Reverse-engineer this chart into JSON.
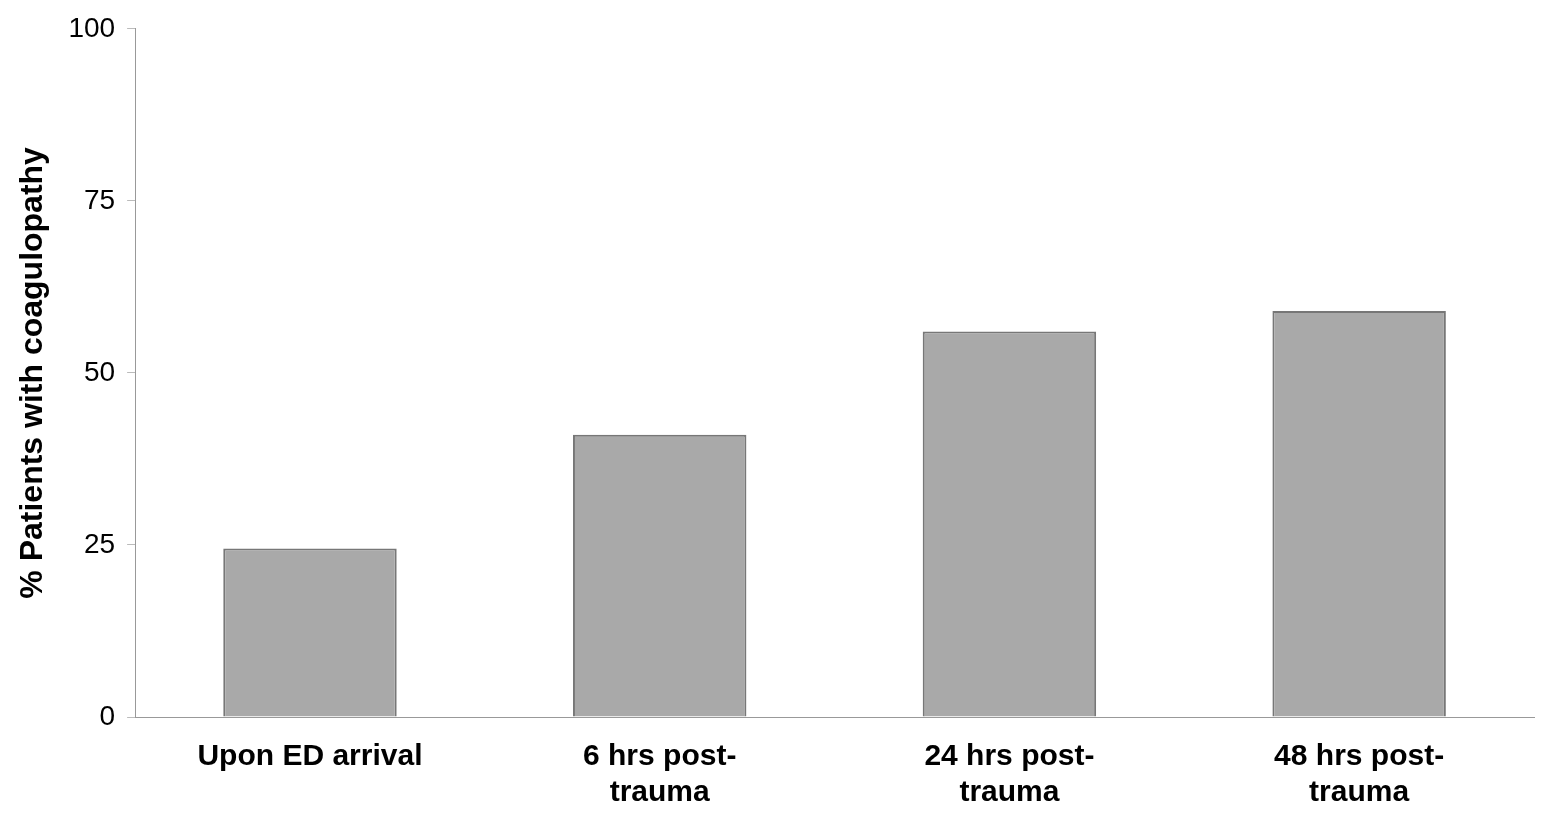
{
  "chart_data": {
    "type": "bar",
    "ylabel": "% Patients with coagulopathy",
    "categories": [
      "Upon ED arrival",
      "6 hrs post-trauma",
      "24 hrs post-trauma",
      "48 hrs post-trauma"
    ],
    "values": [
      24.5,
      41,
      56,
      59
    ],
    "color": "#a9a9a9",
    "ylim": [
      0,
      100
    ],
    "yticks": [
      0,
      25,
      50,
      75,
      100
    ],
    "grid": false,
    "legend": false
  }
}
